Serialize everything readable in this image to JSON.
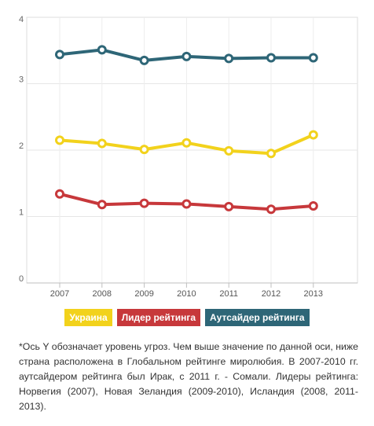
{
  "chart_data": {
    "type": "line",
    "x": [
      "2007",
      "2008",
      "2009",
      "2010",
      "2011",
      "2012",
      "2013"
    ],
    "ylim": [
      0,
      4
    ],
    "yticks": [
      "0",
      "1",
      "2",
      "3",
      "4"
    ],
    "grid": true,
    "legend_position": "bottom-center",
    "series": [
      {
        "name": "Украина",
        "color": "#f2d21c",
        "values": [
          2.15,
          2.1,
          2.01,
          2.11,
          1.99,
          1.95,
          2.23
        ]
      },
      {
        "name": "Лидер рейтинга",
        "color": "#c7383b",
        "values": [
          1.34,
          1.18,
          1.2,
          1.19,
          1.15,
          1.11,
          1.16
        ]
      },
      {
        "name": "Аутсайдер рейтинга",
        "color": "#2e6677",
        "values": [
          3.44,
          3.51,
          3.35,
          3.41,
          3.38,
          3.39,
          3.39
        ]
      }
    ]
  },
  "footnote": "*Ось Y обозначает уровень угроз. Чем выше значение по данной оси, ниже страна расположена в Глобальном рейтинге миролюбия. В 2007-2010 гг. аутсайдером рейтинга был Ирак, с 2011 г. - Сомали. Лидеры рейтинга: Норвегия (2007), Новая Зеландия (2009-2010), Исландия (2008, 2011-2013)."
}
